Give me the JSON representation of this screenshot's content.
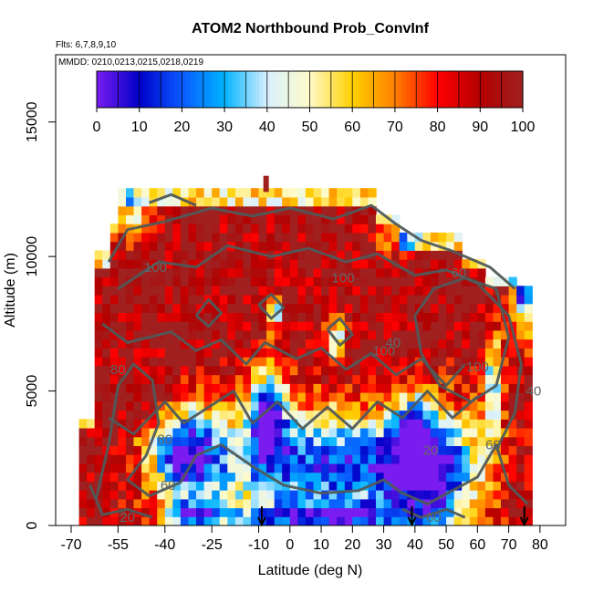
{
  "chart_data": {
    "type": "heatmap",
    "title": "ATOM2 Northbound Prob_ConvInf",
    "subtitle_flights": "Flts: 6,7,8,9,10",
    "subtitle_dates": "MMDD: 0210,0213,0215,0218,0219",
    "xlabel": "Latitude (deg N)",
    "ylabel": "Altitude (m)",
    "xlim": [
      -70,
      85
    ],
    "ylim": [
      0,
      17500
    ],
    "x_ticks": [
      -70,
      -55,
      -40,
      -25,
      -10,
      0,
      10,
      20,
      30,
      40,
      50,
      60,
      70,
      80
    ],
    "y_ticks": [
      0,
      5000,
      10000,
      15000
    ],
    "colorbar": {
      "min": 0,
      "max": 100,
      "ticks": [
        0,
        10,
        20,
        30,
        40,
        50,
        60,
        70,
        80,
        90,
        100
      ],
      "stops": [
        "#7a1cf0",
        "#0000c8",
        "#0a5aff",
        "#00b4ff",
        "#d8f0ff",
        "#fffbc8",
        "#ffd000",
        "#ff8000",
        "#ff0000",
        "#b40000",
        "#a02020"
      ]
    },
    "contour_labels": [
      {
        "text": "100",
        "x": -43,
        "y": 9600
      },
      {
        "text": "100",
        "x": 17,
        "y": 9200
      },
      {
        "text": "100",
        "x": 30,
        "y": 6500
      },
      {
        "text": "100",
        "x": 60,
        "y": 5900
      },
      {
        "text": "60",
        "x": 54,
        "y": 9400
      },
      {
        "text": "80",
        "x": -40,
        "y": 3200
      },
      {
        "text": "80",
        "x": -55,
        "y": 5800
      },
      {
        "text": "60",
        "x": -39,
        "y": 1500
      },
      {
        "text": "60",
        "x": 46,
        "y": 300
      },
      {
        "text": "20",
        "x": -52,
        "y": 300
      },
      {
        "text": "40",
        "x": 78,
        "y": 5000
      },
      {
        "text": "60",
        "x": 65,
        "y": 3000
      },
      {
        "text": "20",
        "x": 45,
        "y": 2800
      },
      {
        "text": "40",
        "x": 33,
        "y": 6800
      }
    ],
    "flight_arrows_lat": [
      -9,
      39,
      75
    ],
    "grid": false
  }
}
